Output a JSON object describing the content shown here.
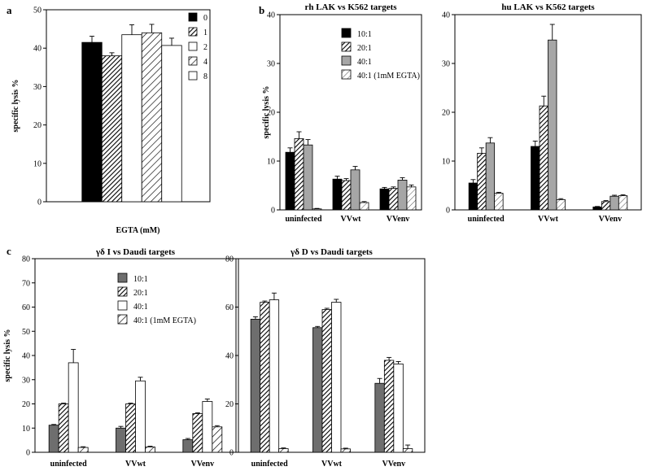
{
  "panel_labels": {
    "a": "a",
    "b": "b",
    "c": "c"
  },
  "chart_data": [
    {
      "id": "a",
      "type": "bar",
      "title": "",
      "xlabel": "EGTA  (mM)",
      "ylabel": "specific lysis %",
      "ylim": [
        0,
        50
      ],
      "yticks": [
        0,
        10,
        20,
        30,
        40,
        50
      ],
      "categories": [
        ""
      ],
      "legend_position": "top-right",
      "series": [
        {
          "name": "0",
          "pattern": "solid-black",
          "values": [
            41.5
          ],
          "errors": [
            1.6
          ]
        },
        {
          "name": "1",
          "pattern": "hatch-dense",
          "values": [
            38.0
          ],
          "errors": [
            0.8
          ]
        },
        {
          "name": "2",
          "pattern": "white",
          "values": [
            43.5
          ],
          "errors": [
            2.6
          ]
        },
        {
          "name": "4",
          "pattern": "hatch-wide",
          "values": [
            44.0
          ],
          "errors": [
            2.2
          ]
        },
        {
          "name": "8",
          "pattern": "white",
          "values": [
            40.7
          ],
          "errors": [
            1.9
          ]
        }
      ]
    },
    {
      "id": "b-rh",
      "type": "bar",
      "title": "rh LAK vs K562 targets",
      "xlabel": "",
      "ylabel": "specific lysis %",
      "ylim": [
        0,
        40
      ],
      "yticks": [
        0,
        10,
        20,
        30,
        40
      ],
      "categories": [
        "uninfected",
        "VVwt",
        "VVenv"
      ],
      "legend_position": "top-right",
      "series": [
        {
          "name": "10:1",
          "pattern": "solid-black",
          "values": [
            11.8,
            6.3,
            4.3
          ],
          "errors": [
            0.9,
            0.6,
            0.3
          ]
        },
        {
          "name": "20:1",
          "pattern": "hatch-dense",
          "values": [
            14.6,
            6.0,
            4.4
          ],
          "errors": [
            1.4,
            0.4,
            0.3
          ]
        },
        {
          "name": "40:1",
          "pattern": "gray",
          "values": [
            13.3,
            8.2,
            6.1
          ],
          "errors": [
            1.1,
            0.7,
            0.5
          ]
        },
        {
          "name": "40:1 (1mM EGTA)",
          "pattern": "hatch-light",
          "values": [
            0.2,
            1.5,
            4.7
          ],
          "errors": [
            0.1,
            0.2,
            0.4
          ]
        }
      ]
    },
    {
      "id": "b-hu",
      "type": "bar",
      "title": "hu LAK vs K562 targets",
      "xlabel": "",
      "ylabel": "",
      "ylim": [
        0,
        40
      ],
      "yticks": [
        0,
        10,
        20,
        30,
        40
      ],
      "categories": [
        "uninfected",
        "VVwt",
        "VVenv"
      ],
      "series": [
        {
          "name": "10:1",
          "pattern": "solid-black",
          "values": [
            5.5,
            13.0,
            0.6
          ],
          "errors": [
            0.7,
            1.1,
            0.1
          ]
        },
        {
          "name": "20:1",
          "pattern": "hatch-dense",
          "values": [
            11.6,
            21.3,
            1.7
          ],
          "errors": [
            1.1,
            2.0,
            0.2
          ]
        },
        {
          "name": "40:1",
          "pattern": "gray",
          "values": [
            13.7,
            34.8,
            2.8
          ],
          "errors": [
            1.1,
            3.2,
            0.2
          ]
        },
        {
          "name": "40:1 (1mM EGTA)",
          "pattern": "hatch-light",
          "values": [
            3.4,
            2.1,
            2.9
          ],
          "errors": [
            0.2,
            0.2,
            0.2
          ]
        }
      ]
    },
    {
      "id": "c-I",
      "type": "bar",
      "title": "γδ I vs Daudi targets",
      "xlabel": "",
      "ylabel": "specific lysis %",
      "ylim": [
        0,
        80
      ],
      "yticks": [
        0,
        10,
        20,
        30,
        40,
        50,
        60,
        70,
        80
      ],
      "categories": [
        "uninfected",
        "VVwt",
        "VVenv"
      ],
      "legend_position": "top-right",
      "series": [
        {
          "name": "10:1",
          "pattern": "dark-gray",
          "values": [
            11.2,
            10.0,
            5.2
          ],
          "errors": [
            0.3,
            0.7,
            0.5
          ]
        },
        {
          "name": "20:1",
          "pattern": "hatch-dense",
          "values": [
            20.0,
            20.0,
            16.0
          ],
          "errors": [
            0.3,
            0.3,
            0.3
          ]
        },
        {
          "name": "40:1",
          "pattern": "white",
          "values": [
            37.0,
            29.5,
            21.0
          ],
          "errors": [
            5.5,
            1.5,
            1.0
          ]
        },
        {
          "name": "40:1 (1mM EGTA)",
          "pattern": "hatch-wide",
          "values": [
            2.0,
            2.2,
            10.5
          ],
          "errors": [
            0.3,
            0.3,
            0.5
          ]
        }
      ]
    },
    {
      "id": "c-D",
      "type": "bar",
      "title": "γδ D vs Daudi targets",
      "xlabel": "",
      "ylabel": "",
      "ylim": [
        0,
        80
      ],
      "yticks": [
        0,
        20,
        40,
        60,
        80
      ],
      "categories": [
        "uninfected",
        "VVwt",
        "VVenv"
      ],
      "series": [
        {
          "name": "10:1",
          "pattern": "dark-gray",
          "values": [
            55.0,
            51.5,
            28.5
          ],
          "errors": [
            1.0,
            0.5,
            2.0
          ]
        },
        {
          "name": "20:1",
          "pattern": "hatch-dense",
          "values": [
            62.0,
            59.0,
            38.0
          ],
          "errors": [
            0.5,
            0.5,
            1.2
          ]
        },
        {
          "name": "40:1",
          "pattern": "white",
          "values": [
            63.0,
            62.0,
            36.5
          ],
          "errors": [
            2.8,
            1.2,
            1.0
          ]
        },
        {
          "name": "40:1 (1mM EGTA)",
          "pattern": "hatch-wide",
          "values": [
            1.5,
            1.4,
            1.5
          ],
          "errors": [
            0.3,
            0.3,
            1.5
          ]
        }
      ]
    }
  ]
}
